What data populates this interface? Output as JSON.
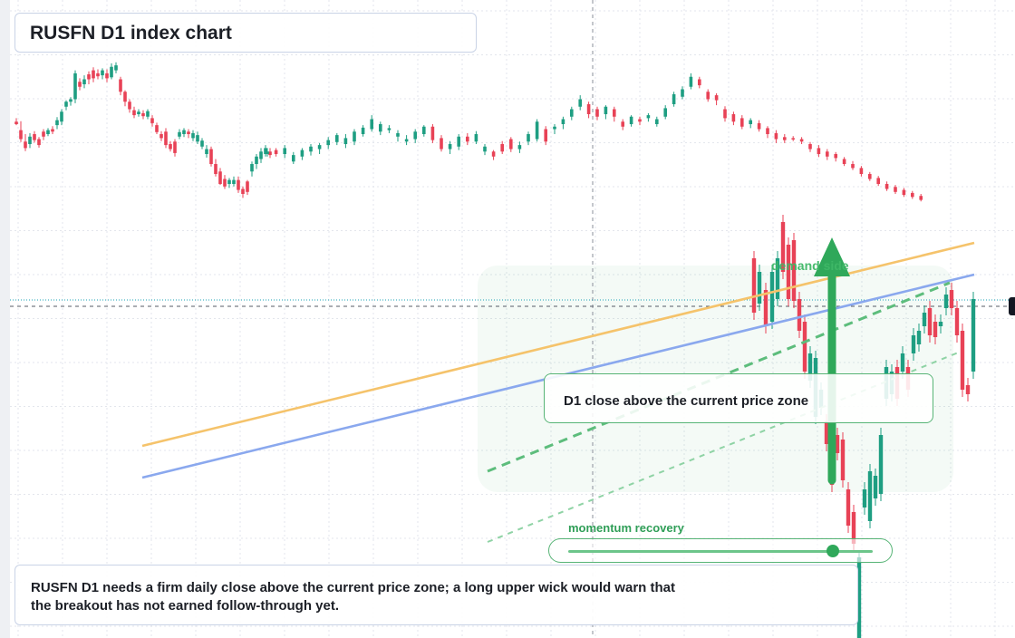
{
  "header": {
    "title": "RUSFN D1 index chart"
  },
  "annotations": {
    "zone_label": "D1 close above the current price zone",
    "demand_label": "demand side",
    "momentum_label": "momentum recovery",
    "note": "RUSFN D1 needs a firm daily close above the current price zone; a long upper wick would warn that the breakout has not earned follow-through yet."
  },
  "momentum": {
    "level": 0.87
  },
  "colors": {
    "up": "#1e9e82",
    "down": "#e84256",
    "trend_orange": "#f5c36b",
    "trend_blue": "#8aa8ee",
    "accent_green": "#2fa85a",
    "grid": "#e3e6ec"
  },
  "chart_data": {
    "type": "candlestick",
    "timeframe": "D1",
    "symbol": "RUSFN",
    "ylim": [
      0,
      704
    ],
    "current_price": 338,
    "candles": [
      [
        165,
        160,
        172,
        158
      ],
      [
        148,
        130,
        166,
        124
      ],
      [
        125,
        112,
        140,
        106
      ],
      [
        120,
        135,
        142,
        112
      ],
      [
        140,
        128,
        146,
        123
      ],
      [
        130,
        118,
        134,
        113
      ],
      [
        145,
        135,
        150,
        128
      ],
      [
        140,
        148,
        152,
        136
      ],
      [
        150,
        145,
        156,
        140
      ],
      [
        158,
        168,
        174,
        150
      ],
      [
        165,
        185,
        190,
        158
      ],
      [
        195,
        205,
        208,
        188
      ],
      [
        205,
        210,
        214,
        197
      ],
      [
        210,
        262,
        268,
        202
      ],
      [
        245,
        235,
        252,
        228
      ],
      [
        240,
        250,
        258,
        232
      ],
      [
        260,
        250,
        266,
        240
      ],
      [
        268,
        252,
        274,
        244
      ],
      [
        262,
        256,
        270,
        250
      ],
      [
        258,
        268,
        272,
        250
      ],
      [
        262,
        252,
        270,
        244
      ],
      [
        254,
        275,
        282,
        250
      ],
      [
        268,
        278,
        284,
        262
      ],
      [
        250,
        225,
        255,
        218
      ],
      [
        225,
        205,
        228,
        196
      ],
      [
        205,
        190,
        210,
        183
      ],
      [
        188,
        178,
        195,
        172
      ],
      [
        180,
        185,
        190,
        175
      ],
      [
        182,
        176,
        188,
        170
      ],
      [
        175,
        186,
        190,
        170
      ],
      [
        172,
        162,
        178,
        155
      ],
      [
        158,
        144,
        163,
        140
      ],
      [
        140,
        132,
        146,
        126
      ],
      [
        145,
        118,
        152,
        112
      ],
      [
        120,
        110,
        126,
        105
      ],
      [
        125,
        102,
        130,
        95
      ],
      [
        135,
        144,
        150,
        130
      ],
      [
        140,
        148,
        152,
        134
      ],
      [
        145,
        140,
        150,
        132
      ],
      [
        132,
        142,
        148,
        126
      ],
      [
        125,
        138,
        145,
        120
      ],
      [
        115,
        127,
        132,
        110
      ],
      [
        100,
        110,
        118,
        93
      ],
      [
        110,
        80,
        115,
        75
      ],
      [
        80,
        60,
        90,
        55
      ],
      [
        65,
        40,
        72,
        38
      ],
      [
        50,
        35,
        58,
        30
      ],
      [
        40,
        48,
        52,
        32
      ],
      [
        40,
        48,
        55,
        35
      ],
      [
        48,
        28,
        55,
        22
      ],
      [
        30,
        20,
        35,
        12
      ],
      [
        45,
        24,
        48,
        18
      ],
      [
        65,
        80,
        85,
        55
      ],
      [
        80,
        95,
        100,
        70
      ],
      [
        90,
        105,
        112,
        82
      ],
      [
        100,
        112,
        118,
        95
      ],
      [
        105,
        98,
        112,
        92
      ],
      [
        100,
        105,
        112,
        95
      ],
      [
        108,
        100,
        112,
        95
      ],
      [
        100,
        112,
        118,
        92
      ],
      [
        85,
        98,
        104,
        80
      ],
      [
        95,
        108,
        112,
        88
      ],
      [
        105,
        115,
        120,
        97
      ],
      [
        110,
        118,
        122,
        100
      ],
      [
        118,
        128,
        134,
        110
      ],
      [
        124,
        138,
        142,
        118
      ],
      [
        120,
        132,
        140,
        112
      ],
      [
        125,
        145,
        150,
        118
      ],
      [
        140,
        153,
        158,
        135
      ],
      [
        150,
        170,
        178,
        145
      ],
      [
        145,
        160,
        165,
        138
      ],
      [
        148,
        152,
        158,
        142
      ],
      [
        135,
        142,
        148,
        125
      ],
      [
        125,
        130,
        138,
        118
      ],
      [
        130,
        145,
        150,
        122
      ],
      [
        140,
        155,
        158,
        135
      ],
      [
        155,
        128,
        160,
        122
      ],
      [
        132,
        110,
        138,
        105
      ],
      [
        110,
        120,
        126,
        100
      ],
      [
        115,
        135,
        140,
        108
      ],
      [
        135,
        125,
        142,
        118
      ],
      [
        125,
        140,
        146,
        120
      ],
      [
        105,
        115,
        120,
        98
      ],
      [
        105,
        95,
        108,
        88
      ],
      [
        120,
        105,
        126,
        100
      ],
      [
        130,
        110,
        134,
        104
      ],
      [
        110,
        118,
        125,
        102
      ],
      [
        125,
        140,
        145,
        118
      ],
      [
        130,
        165,
        170,
        125
      ],
      [
        150,
        125,
        156,
        118
      ],
      [
        150,
        155,
        160,
        140
      ],
      [
        160,
        170,
        175,
        150
      ],
      [
        175,
        190,
        195,
        168
      ],
      [
        195,
        210,
        218,
        188
      ],
      [
        200,
        180,
        205,
        172
      ],
      [
        190,
        175,
        195,
        168
      ],
      [
        180,
        195,
        198,
        170
      ],
      [
        190,
        175,
        195,
        165
      ],
      [
        165,
        155,
        170,
        148
      ],
      [
        160,
        175,
        178,
        155
      ],
      [
        170,
        165,
        175,
        158
      ],
      [
        172,
        178,
        182,
        165
      ],
      [
        160,
        170,
        175,
        155
      ],
      [
        175,
        192,
        198,
        170
      ],
      [
        200,
        220,
        225,
        195
      ],
      [
        215,
        230,
        236,
        210
      ],
      [
        235,
        255,
        262,
        230
      ],
      [
        250,
        238,
        255,
        232
      ],
      [
        225,
        210,
        230,
        205
      ],
      [
        218,
        208,
        222,
        198
      ],
      [
        190,
        172,
        196,
        165
      ],
      [
        180,
        165,
        185,
        158
      ],
      [
        172,
        155,
        178,
        150
      ],
      [
        160,
        168,
        172,
        152
      ],
      [
        162,
        150,
        168,
        145
      ],
      [
        152,
        140,
        156,
        132
      ],
      [
        142,
        130,
        148,
        122
      ],
      [
        134,
        128,
        140,
        122
      ],
      [
        132,
        130,
        136,
        126
      ],
      [
        130,
        125,
        134,
        120
      ],
      [
        120,
        110,
        124,
        104
      ],
      [
        112,
        100,
        118,
        94
      ],
      [
        105,
        95,
        110,
        88
      ],
      [
        100,
        92,
        104,
        85
      ],
      [
        90,
        80,
        94,
        76
      ],
      [
        80,
        72,
        86,
        68
      ],
      [
        72,
        60,
        76,
        55
      ],
      [
        60,
        50,
        64,
        46
      ],
      [
        52,
        40,
        56,
        36
      ],
      [
        40,
        30,
        45,
        26
      ],
      [
        34,
        24,
        38,
        20
      ],
      [
        28,
        18,
        32,
        14
      ],
      [
        22,
        14,
        26,
        10
      ],
      [
        16,
        8,
        20,
        5
      ]
    ],
    "trendlines": [
      {
        "color": "orange",
        "from": [
          157,
          492
        ],
        "to": [
          1075,
          268
        ]
      },
      {
        "color": "blue",
        "from": [
          157,
          527
        ],
        "to": [
          1075,
          303
        ]
      }
    ]
  }
}
